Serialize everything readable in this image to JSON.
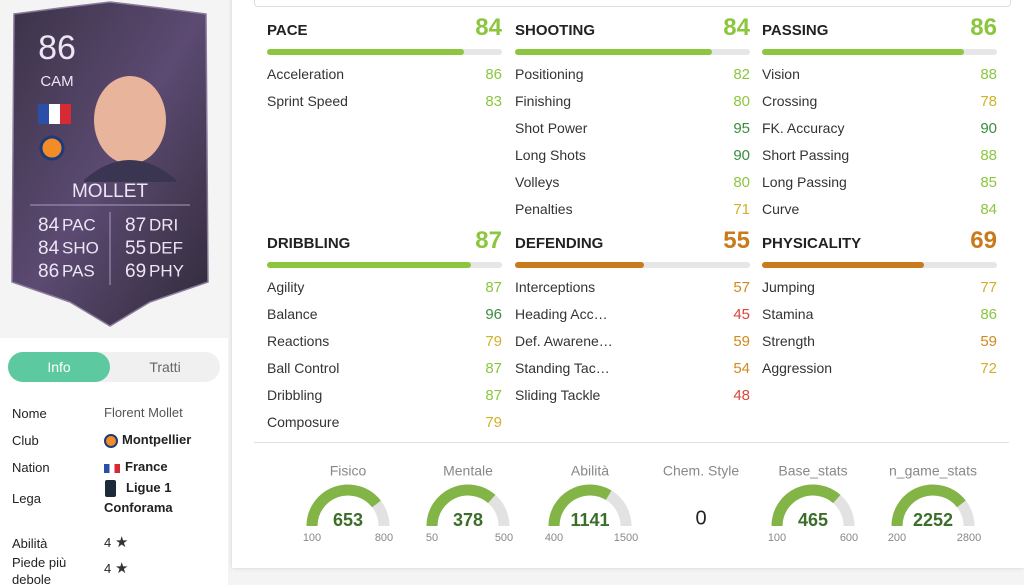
{
  "card": {
    "rating": "86",
    "position": "CAM",
    "name": "MOLLET",
    "stats": [
      {
        "value": "84",
        "label": "PAC"
      },
      {
        "value": "84",
        "label": "SHO"
      },
      {
        "value": "86",
        "label": "PAS"
      },
      {
        "value": "87",
        "label": "DRI"
      },
      {
        "value": "55",
        "label": "DEF"
      },
      {
        "value": "69",
        "label": "PHY"
      }
    ]
  },
  "tabs": [
    "Info",
    "Tratti"
  ],
  "info": [
    {
      "label": "Nome",
      "value": "Florent Mollet"
    },
    {
      "label": "Club",
      "value": "Montpellier"
    },
    {
      "label": "Nation",
      "value": "France"
    },
    {
      "label": "Lega",
      "value": "Ligue 1 Conforama"
    },
    {
      "label": "Abilità",
      "value": "4"
    },
    {
      "label": "Piede più debole",
      "value": "4"
    }
  ],
  "groups": [
    {
      "name": "PACE",
      "value": 84,
      "attributes": [
        {
          "name": "Acceleration",
          "value": 86
        },
        {
          "name": "Sprint Speed",
          "value": 83
        }
      ]
    },
    {
      "name": "SHOOTING",
      "value": 84,
      "attributes": [
        {
          "name": "Positioning",
          "value": 82
        },
        {
          "name": "Finishing",
          "value": 80
        },
        {
          "name": "Shot Power",
          "value": 95
        },
        {
          "name": "Long Shots",
          "value": 90
        },
        {
          "name": "Volleys",
          "value": 80
        },
        {
          "name": "Penalties",
          "value": 71
        }
      ]
    },
    {
      "name": "PASSING",
      "value": 86,
      "attributes": [
        {
          "name": "Vision",
          "value": 88
        },
        {
          "name": "Crossing",
          "value": 78
        },
        {
          "name": "FK. Accuracy",
          "value": 90
        },
        {
          "name": "Short Passing",
          "value": 88
        },
        {
          "name": "Long Passing",
          "value": 85
        },
        {
          "name": "Curve",
          "value": 84
        }
      ]
    },
    {
      "name": "DRIBBLING",
      "value": 87,
      "attributes": [
        {
          "name": "Agility",
          "value": 87
        },
        {
          "name": "Balance",
          "value": 96
        },
        {
          "name": "Reactions",
          "value": 79
        },
        {
          "name": "Ball Control",
          "value": 87
        },
        {
          "name": "Dribbling",
          "value": 87
        },
        {
          "name": "Composure",
          "value": 79
        }
      ]
    },
    {
      "name": "DEFENDING",
      "value": 55,
      "attributes": [
        {
          "name": "Interceptions",
          "value": 57
        },
        {
          "name": "Heading Acc…",
          "value": 45
        },
        {
          "name": "Def. Awarene…",
          "value": 59
        },
        {
          "name": "Standing Tac…",
          "value": 54
        },
        {
          "name": "Sliding Tackle",
          "value": 48
        }
      ]
    },
    {
      "name": "PHYSICALITY",
      "value": 69,
      "attributes": [
        {
          "name": "Jumping",
          "value": 77
        },
        {
          "name": "Stamina",
          "value": 86
        },
        {
          "name": "Strength",
          "value": 59
        },
        {
          "name": "Aggression",
          "value": 72
        }
      ]
    }
  ],
  "gauges": [
    {
      "label": "Fisico",
      "value": 653,
      "min": 100,
      "max": 800
    },
    {
      "label": "Mentale",
      "value": 378,
      "min": 50,
      "max": 500
    },
    {
      "label": "Abilità",
      "value": 1141,
      "min": 400,
      "max": 1500
    },
    {
      "label": "Chem. Style",
      "value": 0
    },
    {
      "label": "Base_stats",
      "value": 465,
      "min": 100,
      "max": 600
    },
    {
      "label": "n_game_stats",
      "value": 2252,
      "min": 200,
      "max": 2800
    }
  ]
}
